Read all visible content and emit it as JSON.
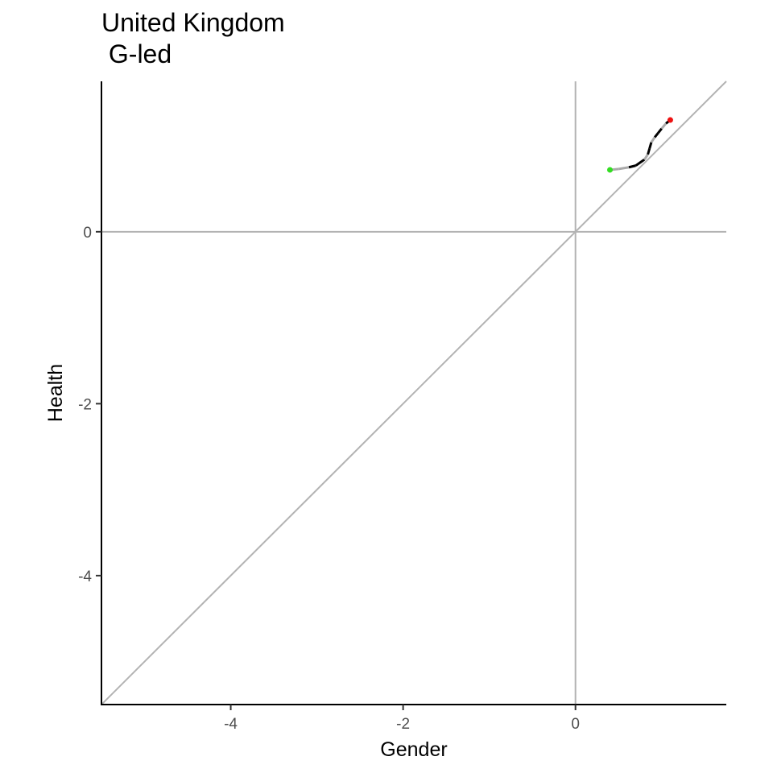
{
  "chart_data": {
    "type": "line",
    "title_lines": [
      "United Kingdom",
      " G-led"
    ],
    "xlabel": "Gender",
    "ylabel": "Health",
    "xlim": [
      -5.5,
      1.75
    ],
    "ylim": [
      -5.5,
      1.75
    ],
    "x_ticks": [
      -4,
      -2,
      0
    ],
    "y_ticks": [
      -4,
      -2,
      0
    ],
    "grid": false,
    "reference_lines": {
      "horizontal_zero": true,
      "vertical_zero": true,
      "diagonal_identity": true,
      "color": "#b3b3b3"
    },
    "trajectory": {
      "x": [
        0.4,
        0.5,
        0.62,
        0.7,
        0.8,
        0.84,
        0.86,
        0.88,
        0.92,
        0.96,
        1.0,
        1.05,
        1.1
      ],
      "y": [
        0.72,
        0.73,
        0.75,
        0.77,
        0.84,
        0.9,
        0.97,
        1.04,
        1.1,
        1.15,
        1.2,
        1.26,
        1.3
      ],
      "pattern": [
        "gray",
        "gray",
        "black",
        "black",
        "gray",
        "black",
        "black",
        "gray",
        "black",
        "black",
        "gray",
        "black"
      ],
      "colors": {
        "gray": "#aaaaaa",
        "black": "#000000"
      },
      "start": {
        "x": 0.4,
        "y": 0.72,
        "color": "#33dd22"
      },
      "end": {
        "x": 1.1,
        "y": 1.3,
        "color": "#ee1111"
      }
    }
  }
}
